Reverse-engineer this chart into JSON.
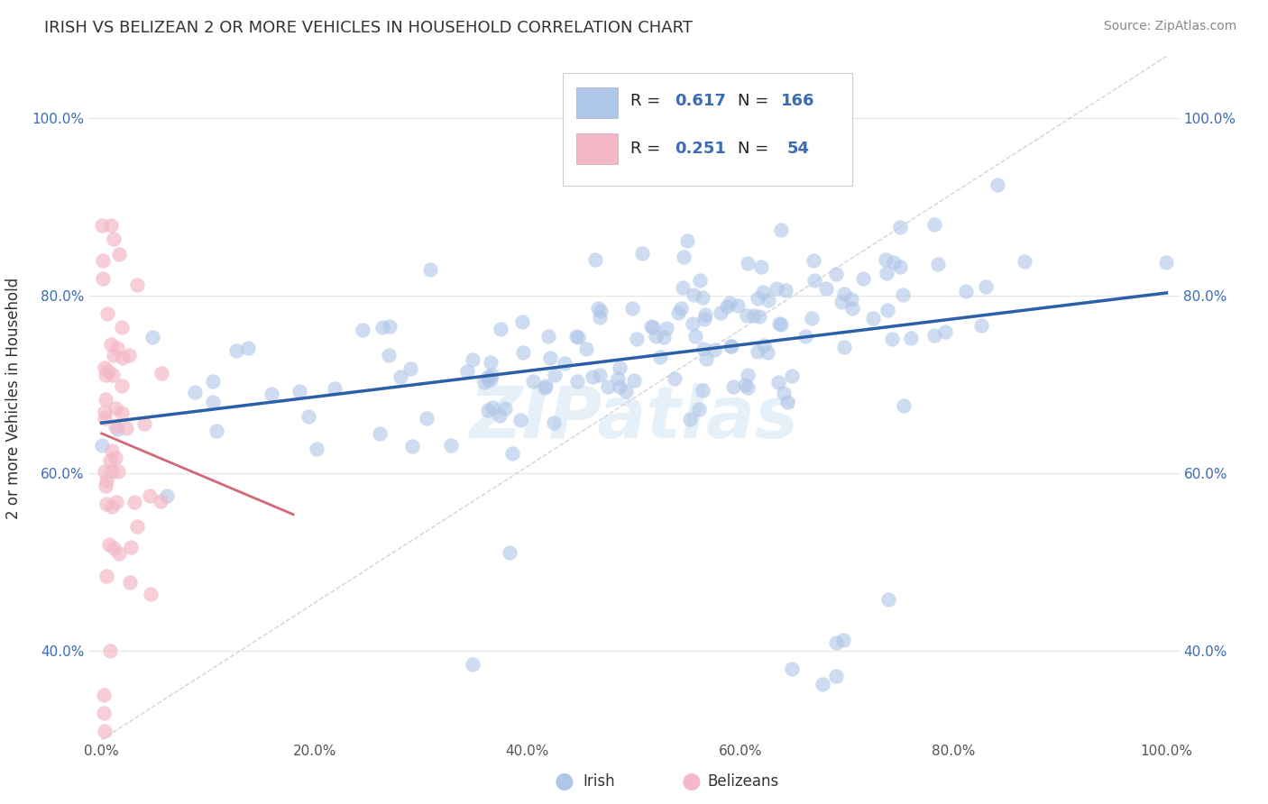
{
  "title": "IRISH VS BELIZEAN 2 OR MORE VEHICLES IN HOUSEHOLD CORRELATION CHART",
  "source": "Source: ZipAtlas.com",
  "ylabel": "2 or more Vehicles in Household",
  "watermark": "ZIPatlas",
  "irish_color": "#aec6e8",
  "irish_edge_color": "#7aaed4",
  "irish_line_color": "#2b5fa8",
  "belizean_color": "#f4b8c8",
  "belizean_edge_color": "#e08090",
  "belizean_line_color": "#d46878",
  "diagonal_color": "#c8c8d0",
  "background_color": "#ffffff",
  "grid_color": "#e8e8e8",
  "title_color": "#333333",
  "source_color": "#888888",
  "legend_label_color": "#222222",
  "legend_value_color": "#3a6bb5",
  "tick_color_y": "#3a6bb5",
  "tick_color_x": "#555555",
  "irish_R": "0.617",
  "irish_N": "166",
  "belizean_R": "0.251",
  "belizean_N": "54"
}
